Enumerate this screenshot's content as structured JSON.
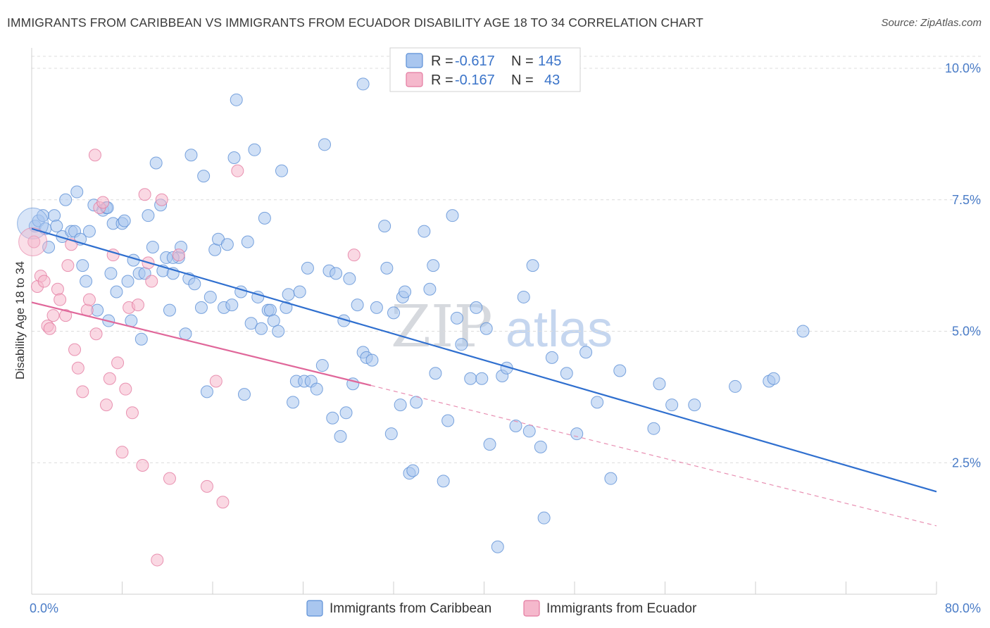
{
  "title": "IMMIGRANTS FROM CARIBBEAN VS IMMIGRANTS FROM ECUADOR DISABILITY AGE 18 TO 34 CORRELATION CHART",
  "source": "Source: ZipAtlas.com",
  "watermark": {
    "part1": "ZIP",
    "part2": "atlas"
  },
  "colors": {
    "caribbean": "#5b8fd6",
    "caribbean_fill": "#a9c6ef",
    "ecuador": "#e47aa0",
    "ecuador_fill": "#f5b8cc",
    "axis_text": "#4a7cc7"
  },
  "legend": {
    "rows": [
      {
        "r_label": "R =",
        "r_value": "-0.617",
        "n_label": "N =",
        "n_value": "145"
      },
      {
        "r_label": "R =",
        "r_value": "-0.167",
        "n_label": "N =",
        "n_value": "43"
      }
    ]
  },
  "chart_data": {
    "type": "scatter",
    "title": "IMMIGRANTS FROM CARIBBEAN VS IMMIGRANTS FROM ECUADOR DISABILITY AGE 18 TO 34 CORRELATION CHART",
    "xlabel": "",
    "ylabel": "Disability Age 18 to 34",
    "xlim": [
      0,
      80
    ],
    "ylim": [
      0,
      10.5
    ],
    "x_tick_labels": [
      "0.0%",
      "80.0%"
    ],
    "y_tick_labels": [
      "2.5%",
      "5.0%",
      "7.5%",
      "10.0%"
    ],
    "y_ticks": [
      2.5,
      5.0,
      7.5,
      10.0
    ],
    "grid": true,
    "legend_position": "top-center",
    "series": [
      {
        "name": "Immigrants from Caribbean",
        "color": "#5b8fd6",
        "trend": {
          "x": [
            0,
            80
          ],
          "y": [
            6.95,
            1.95
          ]
        },
        "points": [
          [
            0.3,
            7.0
          ],
          [
            0.6,
            7.1
          ],
          [
            1.0,
            7.2
          ],
          [
            1.2,
            6.95
          ],
          [
            1.5,
            6.6
          ],
          [
            2.0,
            7.2
          ],
          [
            2.2,
            7.0
          ],
          [
            2.7,
            6.8
          ],
          [
            3.0,
            7.5
          ],
          [
            3.5,
            6.9
          ],
          [
            3.8,
            6.9
          ],
          [
            4.0,
            7.65
          ],
          [
            4.3,
            6.75
          ],
          [
            4.5,
            6.25
          ],
          [
            4.8,
            5.95
          ],
          [
            5.1,
            6.9
          ],
          [
            5.5,
            7.4
          ],
          [
            5.8,
            5.4
          ],
          [
            6.3,
            7.3
          ],
          [
            6.6,
            7.35
          ],
          [
            6.8,
            5.2
          ],
          [
            7.0,
            6.1
          ],
          [
            7.2,
            7.05
          ],
          [
            7.5,
            5.75
          ],
          [
            8.0,
            7.05
          ],
          [
            8.2,
            7.1
          ],
          [
            8.5,
            5.95
          ],
          [
            8.8,
            5.2
          ],
          [
            9.0,
            6.35
          ],
          [
            9.5,
            6.1
          ],
          [
            9.7,
            4.85
          ],
          [
            10.0,
            6.1
          ],
          [
            10.3,
            7.2
          ],
          [
            10.7,
            6.6
          ],
          [
            11.0,
            8.2
          ],
          [
            11.4,
            7.4
          ],
          [
            11.6,
            6.15
          ],
          [
            11.9,
            6.4
          ],
          [
            12.2,
            5.4
          ],
          [
            12.5,
            6.1
          ],
          [
            13.0,
            6.4
          ],
          [
            13.2,
            6.6
          ],
          [
            13.6,
            4.95
          ],
          [
            13.9,
            6.0
          ],
          [
            14.1,
            8.35
          ],
          [
            14.4,
            5.9
          ],
          [
            15.0,
            5.45
          ],
          [
            15.2,
            7.95
          ],
          [
            15.5,
            3.85
          ],
          [
            15.8,
            5.65
          ],
          [
            16.2,
            6.55
          ],
          [
            16.5,
            6.75
          ],
          [
            17.0,
            5.45
          ],
          [
            17.3,
            6.65
          ],
          [
            17.7,
            5.5
          ],
          [
            17.9,
            8.3
          ],
          [
            18.1,
            9.4
          ],
          [
            18.5,
            5.75
          ],
          [
            18.8,
            3.8
          ],
          [
            19.1,
            6.7
          ],
          [
            19.4,
            5.15
          ],
          [
            19.7,
            8.45
          ],
          [
            20.0,
            5.65
          ],
          [
            20.3,
            5.05
          ],
          [
            20.6,
            7.15
          ],
          [
            20.9,
            5.4
          ],
          [
            21.1,
            5.4
          ],
          [
            21.4,
            5.2
          ],
          [
            21.8,
            5.0
          ],
          [
            22.1,
            8.05
          ],
          [
            22.5,
            5.45
          ],
          [
            22.7,
            5.7
          ],
          [
            23.1,
            3.65
          ],
          [
            23.4,
            4.05
          ],
          [
            23.7,
            5.75
          ],
          [
            24.1,
            4.05
          ],
          [
            24.4,
            6.2
          ],
          [
            24.7,
            4.05
          ],
          [
            25.2,
            3.9
          ],
          [
            25.7,
            4.35
          ],
          [
            25.9,
            8.55
          ],
          [
            26.3,
            6.15
          ],
          [
            26.6,
            3.35
          ],
          [
            26.9,
            6.1
          ],
          [
            27.3,
            3.0
          ],
          [
            27.6,
            5.2
          ],
          [
            27.8,
            3.45
          ],
          [
            28.1,
            6.0
          ],
          [
            28.4,
            4.0
          ],
          [
            28.8,
            5.5
          ],
          [
            29.3,
            4.6
          ],
          [
            29.6,
            4.5
          ],
          [
            30.1,
            4.45
          ],
          [
            30.5,
            5.45
          ],
          [
            31.2,
            7.0
          ],
          [
            31.4,
            6.2
          ],
          [
            31.8,
            3.05
          ],
          [
            32.0,
            5.35
          ],
          [
            32.6,
            3.6
          ],
          [
            32.8,
            5.65
          ],
          [
            33.0,
            5.75
          ],
          [
            33.4,
            2.3
          ],
          [
            33.7,
            2.35
          ],
          [
            34.0,
            3.65
          ],
          [
            34.7,
            6.9
          ],
          [
            35.2,
            5.8
          ],
          [
            35.5,
            6.25
          ],
          [
            35.7,
            4.2
          ],
          [
            36.4,
            2.15
          ],
          [
            36.8,
            3.3
          ],
          [
            37.2,
            7.2
          ],
          [
            37.6,
            5.25
          ],
          [
            38.0,
            4.75
          ],
          [
            38.8,
            4.1
          ],
          [
            39.3,
            5.45
          ],
          [
            39.8,
            4.1
          ],
          [
            40.2,
            5.05
          ],
          [
            40.5,
            2.85
          ],
          [
            41.2,
            0.9
          ],
          [
            41.6,
            4.15
          ],
          [
            42.0,
            4.3
          ],
          [
            42.8,
            3.2
          ],
          [
            43.5,
            5.65
          ],
          [
            44.0,
            3.1
          ],
          [
            44.3,
            6.25
          ],
          [
            45.0,
            2.8
          ],
          [
            45.3,
            1.45
          ],
          [
            46.0,
            4.5
          ],
          [
            47.3,
            4.2
          ],
          [
            48.2,
            3.05
          ],
          [
            49.0,
            4.6
          ],
          [
            50.0,
            3.65
          ],
          [
            51.2,
            2.2
          ],
          [
            52.0,
            4.25
          ],
          [
            55.0,
            3.15
          ],
          [
            55.5,
            4.0
          ],
          [
            56.6,
            3.6
          ],
          [
            58.6,
            3.6
          ],
          [
            62.2,
            3.95
          ],
          [
            65.2,
            4.05
          ],
          [
            65.6,
            4.1
          ],
          [
            68.2,
            5.0
          ],
          [
            6.7,
            7.35
          ],
          [
            29.3,
            9.7
          ],
          [
            12.5,
            6.4
          ]
        ]
      },
      {
        "name": "Immigrants from Ecuador",
        "color": "#e47aa0",
        "trend": {
          "x": [
            0,
            30
          ],
          "y": [
            5.55,
            3.97
          ],
          "dashed_to": {
            "x": 80,
            "y": 1.3
          }
        },
        "points": [
          [
            0.2,
            6.7
          ],
          [
            0.5,
            5.85
          ],
          [
            0.8,
            6.05
          ],
          [
            1.1,
            5.95
          ],
          [
            1.4,
            5.1
          ],
          [
            1.6,
            5.05
          ],
          [
            1.9,
            5.3
          ],
          [
            2.3,
            5.8
          ],
          [
            2.5,
            5.6
          ],
          [
            3.0,
            5.3
          ],
          [
            3.2,
            6.25
          ],
          [
            3.5,
            6.65
          ],
          [
            3.8,
            4.65
          ],
          [
            4.1,
            4.3
          ],
          [
            4.5,
            3.85
          ],
          [
            4.9,
            5.4
          ],
          [
            5.1,
            5.6
          ],
          [
            5.6,
            8.35
          ],
          [
            5.7,
            4.95
          ],
          [
            6.0,
            7.35
          ],
          [
            6.3,
            7.45
          ],
          [
            6.6,
            3.6
          ],
          [
            6.9,
            4.1
          ],
          [
            7.2,
            6.45
          ],
          [
            7.6,
            4.4
          ],
          [
            8.0,
            2.7
          ],
          [
            8.3,
            3.9
          ],
          [
            8.6,
            5.45
          ],
          [
            8.9,
            3.45
          ],
          [
            9.4,
            5.5
          ],
          [
            9.8,
            2.45
          ],
          [
            10.0,
            7.6
          ],
          [
            10.3,
            6.3
          ],
          [
            10.6,
            5.95
          ],
          [
            11.1,
            0.65
          ],
          [
            11.5,
            7.5
          ],
          [
            12.2,
            2.2
          ],
          [
            13.0,
            6.45
          ],
          [
            15.5,
            2.05
          ],
          [
            16.3,
            4.05
          ],
          [
            16.9,
            1.75
          ],
          [
            18.2,
            8.05
          ],
          [
            28.5,
            6.45
          ]
        ]
      }
    ]
  },
  "bottom_legend": [
    {
      "label": "Immigrants from Caribbean"
    },
    {
      "label": "Immigrants from Ecuador"
    }
  ]
}
